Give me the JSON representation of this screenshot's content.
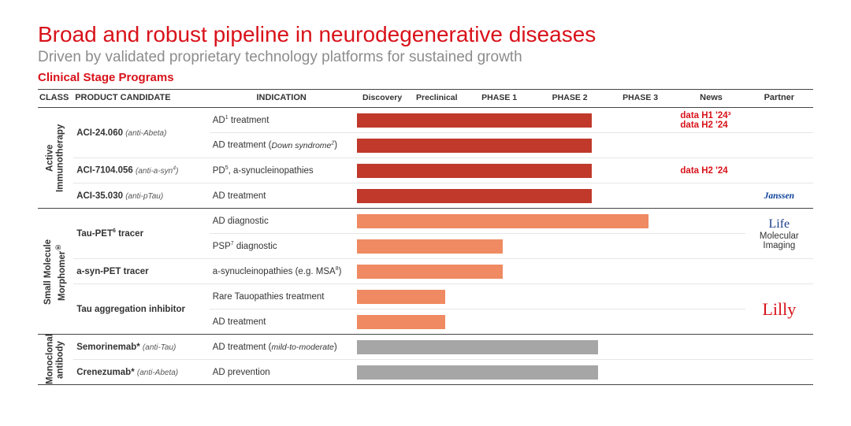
{
  "colors": {
    "title": "#d8121a",
    "subtitle": "#8c8c8c",
    "section_label": "#d8121a",
    "news_text": "#d8121a",
    "bar_red": "#c0392b",
    "bar_orange": "#ef8a62",
    "bar_gray": "#a6a6a6"
  },
  "header": {
    "title": "Broad and robust pipeline in neurodegenerative diseases",
    "subtitle": "Driven by validated proprietary technology platforms for sustained growth",
    "section_label": "Clinical Stage Programs"
  },
  "columns": {
    "class": "CLASS",
    "product": "PRODUCT CANDIDATE",
    "indication": "INDICATION",
    "news": "News",
    "partner": "Partner"
  },
  "phases": [
    {
      "label": "Discovery",
      "width_pct": 17
    },
    {
      "label": "Preclinical",
      "width_pct": 17
    },
    {
      "label": "PHASE 1",
      "width_pct": 22
    },
    {
      "label": "PHASE 2",
      "width_pct": 22
    },
    {
      "label": "PHASE 3",
      "width_pct": 22
    }
  ],
  "classes": [
    {
      "label": "Active\nImmunotherapy",
      "rows": [
        {
          "product_name": "ACI-24.060",
          "product_target": "(anti-Abeta)",
          "product_rowspan": 2,
          "indication_html": "AD<sup>1</sup> treatment",
          "bar_pct": 74,
          "bar_color_key": "bar_red",
          "news_lines": [
            "data H1 '24³",
            "data H2 '24"
          ],
          "partner": ""
        },
        {
          "indication_html": "AD treatment (<span class='sub'>Down syndrome<sup>2</sup></span>)",
          "bar_pct": 74,
          "bar_color_key": "bar_red",
          "news_lines": [],
          "partner": ""
        },
        {
          "product_name": "ACI-7104.056",
          "product_target_html": "(anti-a-syn<sup>4</sup>)",
          "product_rowspan": 1,
          "indication_html": "PD<sup>5</sup>, a-synucleinopathies",
          "bar_pct": 74,
          "bar_color_key": "bar_red",
          "news_lines": [
            "data H2 '24"
          ],
          "partner": ""
        },
        {
          "product_name": "ACI-35.030",
          "product_target": "(anti-pTau)",
          "product_rowspan": 1,
          "indication_html": "AD treatment",
          "bar_pct": 74,
          "bar_color_key": "bar_red",
          "news_lines": [],
          "partner": "janssen"
        }
      ]
    },
    {
      "label_html": "Small Molecule<br>Morphomer<sup>®</sup>",
      "rows": [
        {
          "product_name_html": "Tau-PET<sup>6</sup> tracer",
          "product_target": "",
          "product_rowspan": 2,
          "indication_html": "AD diagnostic",
          "bar_pct": 92,
          "bar_color_key": "bar_orange",
          "news_lines": [],
          "partner": "life",
          "partner_rowspan": 2
        },
        {
          "indication_html": "PSP<sup>7</sup> diagnostic",
          "bar_pct": 46,
          "bar_color_key": "bar_orange",
          "news_lines": []
        },
        {
          "product_name": "a-syn-PET tracer",
          "product_target": "",
          "product_rowspan": 1,
          "indication_html": "a-synucleinopathies (e.g. MSA<sup>8</sup>)",
          "bar_pct": 46,
          "bar_color_key": "bar_orange",
          "news_lines": [],
          "partner": ""
        },
        {
          "product_name": "Tau aggregation inhibitor",
          "product_target": "",
          "product_rowspan": 2,
          "indication_html": "Rare Tauopathies treatment",
          "bar_pct": 28,
          "bar_color_key": "bar_orange",
          "news_lines": [],
          "partner": "lilly",
          "partner_rowspan": 2
        },
        {
          "indication_html": "AD treatment",
          "bar_pct": 28,
          "bar_color_key": "bar_orange",
          "news_lines": []
        }
      ]
    },
    {
      "label": "Monoclonal\nantibody",
      "rows": [
        {
          "product_name": "Semorinemab*",
          "product_target": "(anti-Tau)",
          "product_rowspan": 1,
          "indication_html": "AD treatment (<span class='sub'>mild-to-moderate</span>)",
          "bar_pct": 76,
          "bar_color_key": "bar_gray",
          "news_lines": [],
          "partner": ""
        },
        {
          "product_name": "Crenezumab*",
          "product_target": "(anti-Abeta)",
          "product_rowspan": 1,
          "indication_html": "AD prevention",
          "bar_pct": 76,
          "bar_color_key": "bar_gray",
          "news_lines": [],
          "partner": ""
        }
      ]
    }
  ],
  "partners": {
    "janssen": {
      "text": "Janssen",
      "class": "partner-janssen"
    },
    "life": {
      "text": "Life",
      "tag": "Molecular Imaging",
      "class": "partner-life"
    },
    "lilly": {
      "text": "Lilly",
      "class": "partner-lilly"
    }
  }
}
